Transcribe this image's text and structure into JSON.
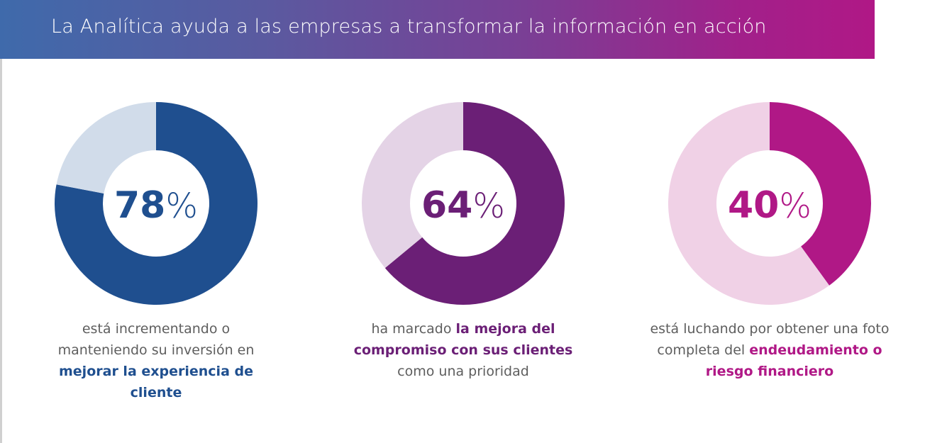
{
  "banner": {
    "title": "La Analítica ayuda a las empresas a transformar la información en acción",
    "gradient_start": "#3f6aab",
    "gradient_end": "#b01886"
  },
  "chart_data": [
    {
      "type": "pie",
      "donut": true,
      "values": [
        78,
        22
      ],
      "labels": [
        "78%",
        ""
      ],
      "value_label": "78",
      "percent_sign": "%",
      "colors": [
        "#1f4f8f",
        "#d1dcea"
      ],
      "caption": {
        "plain_before": "está incrementando o manteniendo su inversión en ",
        "highlight": "mejorar la experiencia de cliente",
        "plain_after": ""
      }
    },
    {
      "type": "pie",
      "donut": true,
      "values": [
        64,
        36
      ],
      "labels": [
        "64%",
        ""
      ],
      "value_label": "64",
      "percent_sign": "%",
      "colors": [
        "#6b1f76",
        "#e4d3e6"
      ],
      "caption": {
        "plain_before": "ha marcado ",
        "highlight": "la mejora del compromiso con sus clientes",
        "plain_after": " como una prioridad"
      }
    },
    {
      "type": "pie",
      "donut": true,
      "values": [
        40,
        60
      ],
      "labels": [
        "40%",
        ""
      ],
      "value_label": "40",
      "percent_sign": "%",
      "colors": [
        "#b01886",
        "#f0d1e6"
      ],
      "caption": {
        "plain_before": "está luchando por obtener una foto completa del ",
        "highlight": "endeudamiento o riesgo financiero",
        "plain_after": ""
      }
    }
  ]
}
